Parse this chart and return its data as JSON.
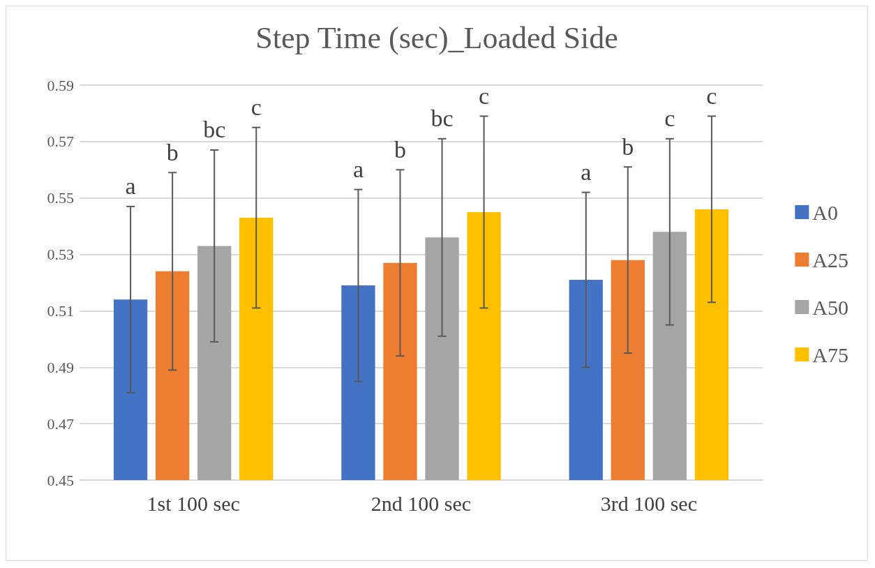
{
  "chart_data": {
    "type": "bar",
    "title": "Step Time (sec)_Loaded Side",
    "categories": [
      "1st 100 sec",
      "2nd 100 sec",
      "3rd 100 sec"
    ],
    "series": [
      {
        "name": "A0",
        "color": "#4472c4",
        "values": [
          0.514,
          0.519,
          0.521
        ],
        "errors": [
          0.033,
          0.034,
          0.031
        ]
      },
      {
        "name": "A25",
        "color": "#ed7d31",
        "values": [
          0.524,
          0.527,
          0.528
        ],
        "errors": [
          0.035,
          0.033,
          0.033
        ]
      },
      {
        "name": "A50",
        "color": "#a5a5a5",
        "values": [
          0.533,
          0.536,
          0.538
        ],
        "errors": [
          0.034,
          0.035,
          0.033
        ]
      },
      {
        "name": "A75",
        "color": "#ffc000",
        "values": [
          0.543,
          0.545,
          0.546
        ],
        "errors": [
          0.032,
          0.034,
          0.033
        ]
      }
    ],
    "annotations": [
      "a",
      "b",
      "bc",
      "c",
      "a",
      "b",
      "bc",
      "c",
      "a",
      "b",
      "c",
      "c"
    ],
    "ylim": [
      0.45,
      0.59
    ],
    "yticks": [
      0.45,
      0.47,
      0.49,
      0.51,
      0.53,
      0.55,
      0.57,
      0.59
    ],
    "grid": "y",
    "legend": "right"
  }
}
